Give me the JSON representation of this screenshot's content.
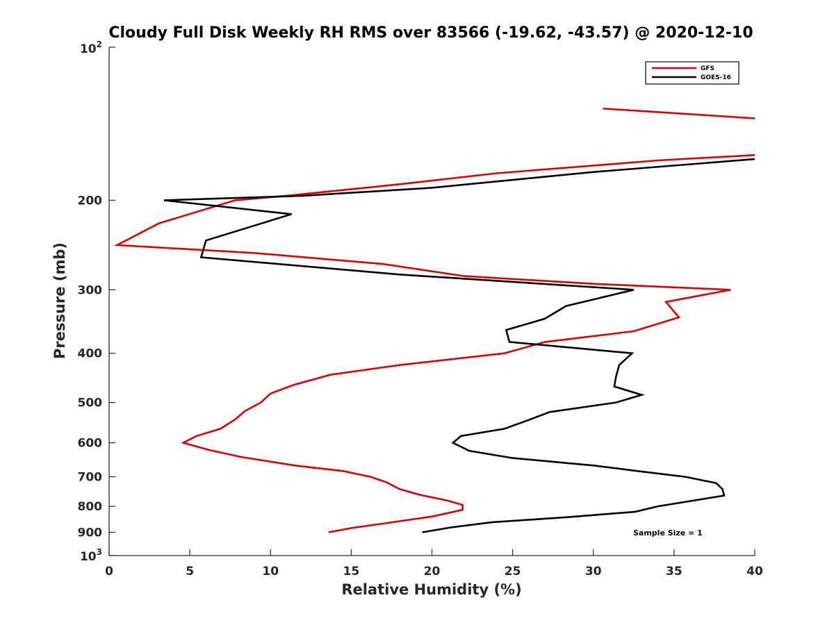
{
  "chart_data": {
    "type": "line",
    "title": "Cloudy Full Disk Weekly RH RMS over 83566 (-19.62, -43.57) @ 2020-12-10",
    "xlabel": "Relative Humidity (%)",
    "ylabel": "Pressure (mb)",
    "xlim": [
      0,
      40
    ],
    "ylim": [
      100,
      1000
    ],
    "y_scale": "log",
    "y_reversed": true,
    "grid": false,
    "x_ticks": [
      {
        "value": 0,
        "label": "0"
      },
      {
        "value": 5,
        "label": "5"
      },
      {
        "value": 10,
        "label": "10"
      },
      {
        "value": 15,
        "label": "15"
      },
      {
        "value": 20,
        "label": "20"
      },
      {
        "value": 25,
        "label": "25"
      },
      {
        "value": 30,
        "label": "30"
      },
      {
        "value": 35,
        "label": "35"
      },
      {
        "value": 40,
        "label": "40"
      }
    ],
    "y_ticks": [
      {
        "value": 100,
        "base": "10",
        "exp": "2"
      },
      {
        "value": 200,
        "label": "200"
      },
      {
        "value": 300,
        "label": "300"
      },
      {
        "value": 400,
        "label": "400"
      },
      {
        "value": 500,
        "label": "500"
      },
      {
        "value": 600,
        "label": "600"
      },
      {
        "value": 700,
        "label": "700"
      },
      {
        "value": 800,
        "label": "800"
      },
      {
        "value": 900,
        "label": "900"
      },
      {
        "value": 1000,
        "base": "10",
        "exp": "3"
      }
    ],
    "legend_position": "top-right",
    "annotation": "Sample Size = 1",
    "series": [
      {
        "name": "GFS",
        "color": "#dd0000",
        "segments": [
          [
            [
              30.6,
              132
            ],
            [
              40,
              138
            ]
          ],
          [
            [
              40,
              163
            ],
            [
              34,
              167
            ],
            [
              24,
              177
            ],
            [
              18,
              186
            ],
            [
              11,
              196
            ],
            [
              7.8,
              200
            ],
            [
              3.1,
              222
            ],
            [
              0.5,
              245
            ],
            [
              9,
              254
            ],
            [
              17,
              267
            ],
            [
              22,
              282
            ],
            [
              30,
              292
            ],
            [
              38.5,
              300
            ],
            [
              34.5,
              317
            ],
            [
              35.3,
              340
            ],
            [
              32.5,
              362
            ],
            [
              27,
              380
            ],
            [
              24.5,
              400
            ],
            [
              18,
              422
            ],
            [
              13.7,
              441
            ],
            [
              11.4,
              462
            ],
            [
              10,
              480
            ],
            [
              9.4,
              500
            ],
            [
              8.4,
              520
            ],
            [
              7.8,
              540
            ],
            [
              6.9,
              563
            ],
            [
              5.4,
              582
            ],
            [
              4.6,
              600
            ],
            [
              6.2,
              620
            ],
            [
              8.2,
              640
            ],
            [
              11.5,
              665
            ],
            [
              14.5,
              682
            ],
            [
              16.2,
              700
            ],
            [
              17.2,
              718
            ],
            [
              18,
              740
            ],
            [
              19.3,
              760
            ],
            [
              21,
              780
            ],
            [
              21.9,
              795
            ],
            [
              21.9,
              813
            ],
            [
              20,
              838
            ],
            [
              17,
              865
            ],
            [
              15,
              883
            ],
            [
              13.6,
              900
            ]
          ]
        ]
      },
      {
        "name": "GOES-16",
        "color": "#000000",
        "segments": [
          [
            [
              40,
              166
            ],
            [
              30,
              176
            ],
            [
              20,
              189
            ],
            [
              12,
              196
            ],
            [
              3.4,
              200
            ],
            [
              11.3,
              213
            ],
            [
              6,
              240
            ],
            [
              5.7,
              259
            ],
            [
              18,
              280
            ],
            [
              32.5,
              300
            ],
            [
              28.3,
              323
            ],
            [
              27,
              342
            ],
            [
              24.6,
              360
            ],
            [
              24.8,
              380
            ],
            [
              32.4,
              400
            ],
            [
              31.6,
              422
            ],
            [
              31.4,
              445
            ],
            [
              31.3,
              465
            ],
            [
              33,
              483
            ],
            [
              31.4,
              500
            ],
            [
              27.3,
              522
            ],
            [
              26,
              541
            ],
            [
              24.5,
              563
            ],
            [
              21.8,
              582
            ],
            [
              21.3,
              600
            ],
            [
              22.3,
              622
            ],
            [
              25,
              643
            ],
            [
              30,
              665
            ],
            [
              32.6,
              681
            ],
            [
              35.7,
              700
            ],
            [
              37.6,
              720
            ],
            [
              38,
              740
            ],
            [
              38.1,
              762
            ],
            [
              34,
              800
            ],
            [
              32.6,
              820
            ],
            [
              28.5,
              840
            ],
            [
              23.7,
              860
            ],
            [
              21.2,
              880
            ],
            [
              19.4,
              900
            ]
          ]
        ]
      }
    ]
  }
}
